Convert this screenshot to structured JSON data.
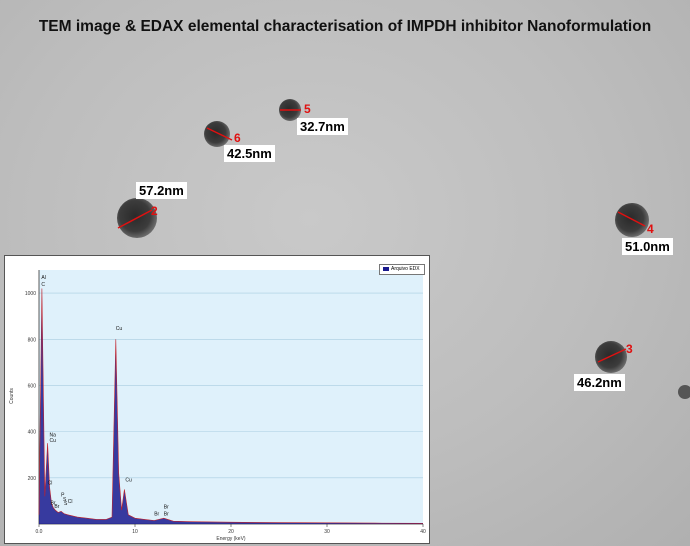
{
  "title": "TEM image & EDAX elemental characterisation of IMPDH inhibitor Nanoformulation",
  "particles": [
    {
      "id": "5",
      "size": "32.7nm"
    },
    {
      "id": "6",
      "size": "42.5nm"
    },
    {
      "id": "2",
      "size": "57.2nm"
    },
    {
      "id": "4",
      "size": "51.0nm"
    },
    {
      "id": "3",
      "size": "46.2nm"
    }
  ],
  "edax": {
    "legend": "Arquivo EDX",
    "xlabel": "Energy (keV)",
    "ylabel": "Counts",
    "x_ticks": [
      "0.0",
      "10",
      "20",
      "30",
      "40"
    ],
    "y_ticks": [
      "1000",
      "800",
      "600",
      "400",
      "200"
    ],
    "peak_labels": [
      "Al",
      "C",
      "Na",
      "Cu",
      "Cl",
      "Br",
      "Br",
      "P",
      "S",
      "S",
      "Cl",
      "Cu",
      "Cu",
      "Br",
      "Br",
      "Br"
    ],
    "colors": {
      "spectrum": "#1a1a8e",
      "peak_outline": "#c0202a",
      "plot_bg": "#dff1fb"
    }
  },
  "chart_data": {
    "type": "line",
    "title": "",
    "xlabel": "Energy (keV)",
    "ylabel": "Counts",
    "xlim": [
      0,
      40
    ],
    "ylim": [
      0,
      1100
    ],
    "grid": true,
    "legend_position": "top-right",
    "series": [
      {
        "name": "Arquivo EDX",
        "x": [
          0.0,
          0.3,
          0.6,
          0.9,
          1.1,
          1.3,
          1.5,
          1.7,
          2.0,
          2.3,
          2.6,
          3.0,
          4.0,
          5.0,
          6.0,
          7.0,
          7.6,
          8.0,
          8.3,
          8.6,
          8.9,
          9.3,
          10.0,
          11.0,
          12.0,
          13.0,
          14.0,
          16.0,
          20.0,
          25.0,
          30.0,
          35.0,
          40.0
        ],
        "values": [
          40,
          1020,
          120,
          350,
          160,
          90,
          70,
          60,
          50,
          55,
          45,
          40,
          30,
          25,
          20,
          20,
          30,
          800,
          220,
          60,
          150,
          40,
          25,
          20,
          15,
          25,
          12,
          10,
          8,
          6,
          5,
          4,
          3
        ]
      }
    ]
  }
}
